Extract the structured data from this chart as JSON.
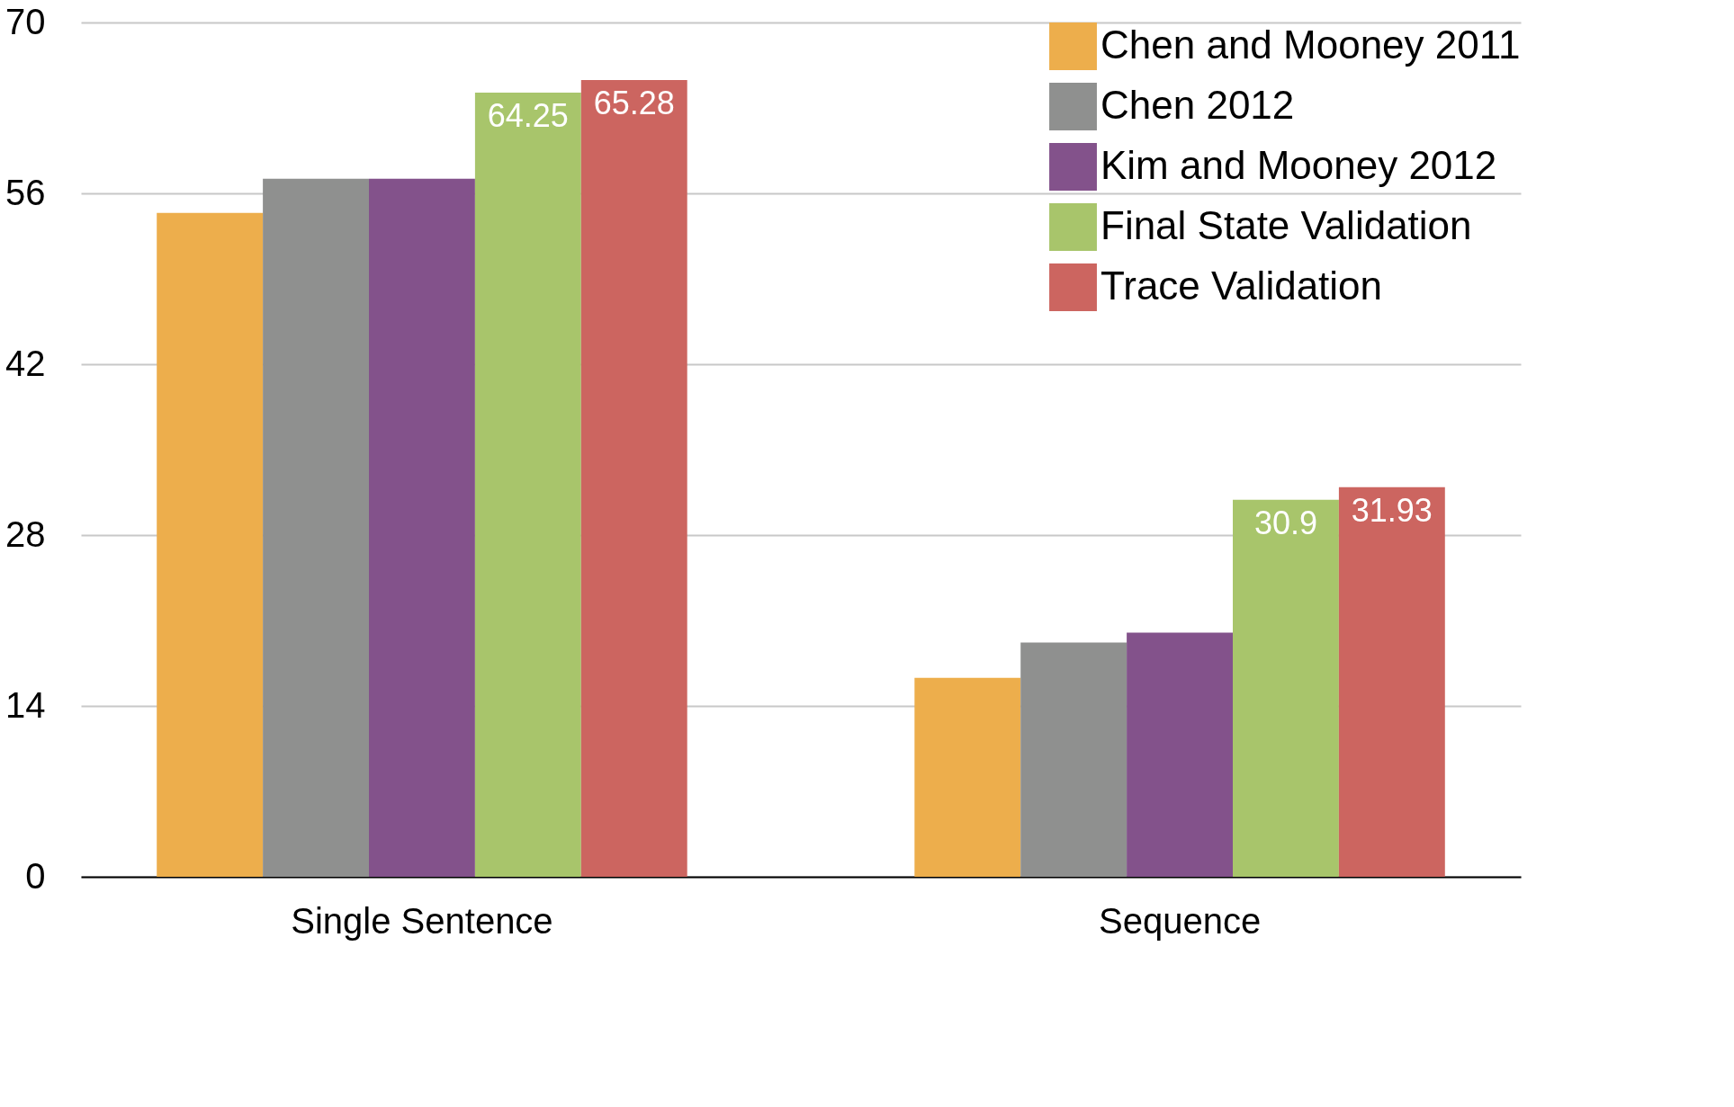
{
  "chart_data": {
    "type": "bar",
    "categories": [
      "Single Sentence",
      "Sequence"
    ],
    "series": [
      {
        "name": "Chen and Mooney 2011",
        "color": "#edae4c",
        "values": [
          54.4,
          16.3
        ]
      },
      {
        "name": "Chen 2012",
        "color": "#8f908f",
        "values": [
          57.2,
          19.2
        ]
      },
      {
        "name": "Kim and Mooney 2012",
        "color": "#83528b",
        "values": [
          57.2,
          20.0
        ]
      },
      {
        "name": "Final State Validation",
        "color": "#a8c56b",
        "values": [
          64.25,
          30.9
        ],
        "value_labels": [
          "64.25",
          "30.9"
        ]
      },
      {
        "name": "Trace Validation",
        "color": "#cc6560",
        "values": [
          65.28,
          31.93
        ],
        "value_labels": [
          "65.28",
          "31.93"
        ]
      }
    ],
    "ylim": [
      0,
      70
    ],
    "yticks": [
      0,
      14,
      28,
      42,
      56,
      70
    ],
    "grid": "y",
    "legend": "top right"
  }
}
